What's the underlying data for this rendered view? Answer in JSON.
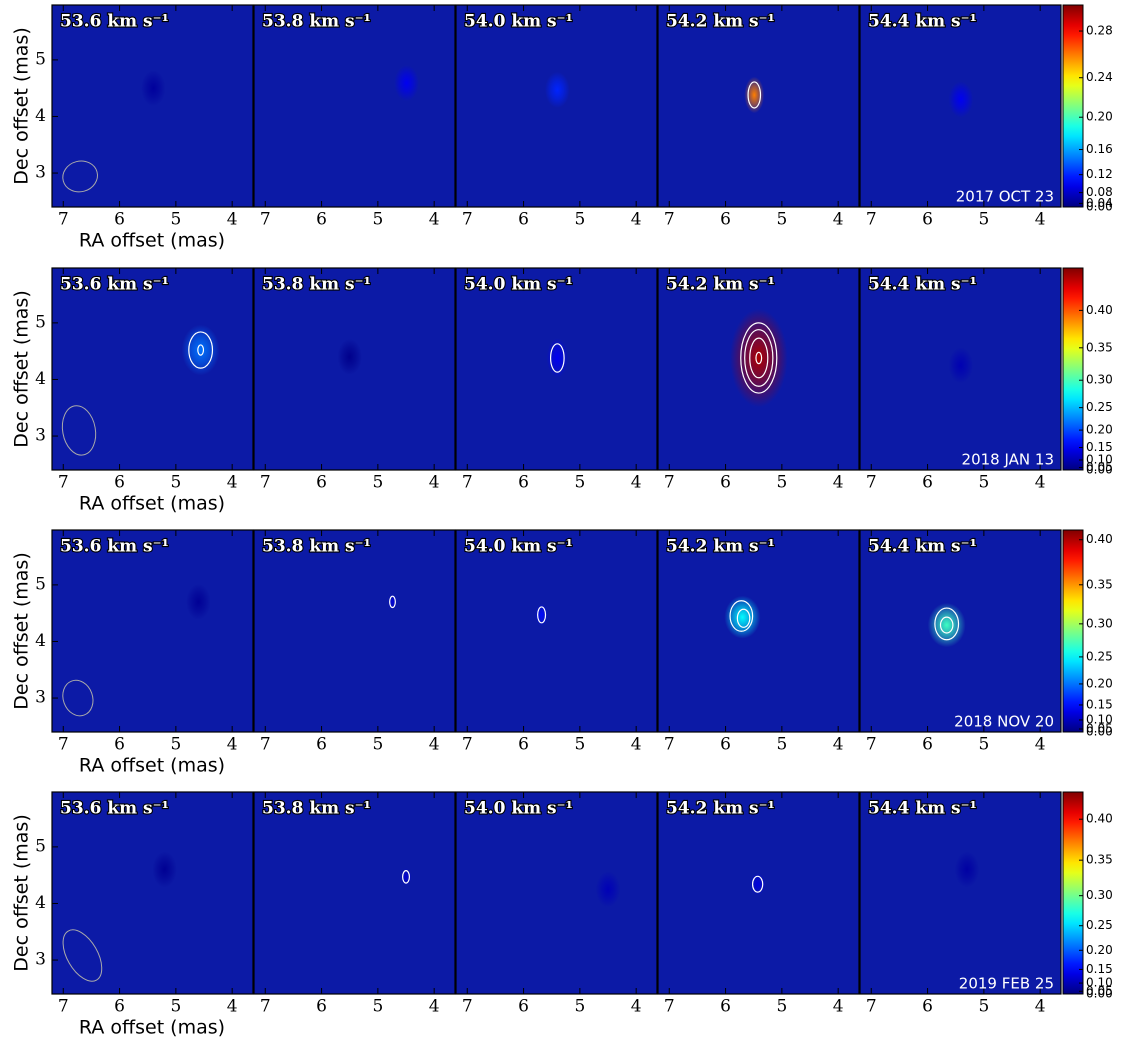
{
  "chart_data": [
    {
      "type": "channel_map",
      "date": "2017 OCT 23",
      "x_label": "RA offset (mas)",
      "y_label": "Dec offset (mas)",
      "xlim": [
        7.2,
        3.63
      ],
      "ylim": [
        2.4,
        5.97
      ],
      "xticks": [
        7,
        6,
        5,
        4
      ],
      "yticks": [
        3,
        4,
        5
      ],
      "background": "#0c1aa6",
      "contour_color": "#ffffff",
      "colorbar": {
        "colormap": "jet",
        "exponent": 2,
        "zlim": [
          0,
          0.3
        ],
        "ticks": [
          {
            "value": 0,
            "label": "0.00"
          },
          {
            "value": 0.04,
            "label": "0.04"
          },
          {
            "value": 0.08,
            "label": "0.08"
          },
          {
            "value": 0.12,
            "label": "0.12"
          },
          {
            "value": 0.16,
            "label": "0.16"
          },
          {
            "value": 0.2,
            "label": "0.20"
          },
          {
            "value": 0.24,
            "label": "0.24"
          },
          {
            "value": 0.28,
            "label": "0.28"
          }
        ]
      },
      "beam": {
        "x": 6.7,
        "y": 2.94,
        "a": 0.31,
        "b": 0.27,
        "angle": -15,
        "color": "#aaaaaa"
      },
      "panels": [
        {
          "label": "53.6 km s⁻¹",
          "peak": {
            "x": 5.4,
            "y": 4.5,
            "value": 0.05
          },
          "contours": []
        },
        {
          "label": "53.8 km s⁻¹",
          "peak": {
            "x": 4.49,
            "y": 4.59,
            "value": 0.1
          },
          "contours": []
        },
        {
          "label": "54.0 km s⁻¹",
          "peak": {
            "x": 5.4,
            "y": 4.47,
            "value": 0.12
          },
          "contours": []
        },
        {
          "label": "54.2 km s⁻¹",
          "peak": {
            "x": 5.49,
            "y": 4.38,
            "value": 0.26
          },
          "contours": [
            {
              "x": 5.49,
              "y": 4.38,
              "a": 0.11,
              "b": 0.23
            }
          ]
        },
        {
          "label": "54.4 km s⁻¹",
          "peak": {
            "x": 5.41,
            "y": 4.3,
            "value": 0.1
          },
          "contours": []
        }
      ]
    },
    {
      "type": "channel_map",
      "date": "2018 JAN 13",
      "x_label": "RA offset (mas)",
      "y_label": "Dec offset (mas)",
      "xlim": [
        7.2,
        3.63
      ],
      "ylim": [
        2.4,
        5.97
      ],
      "xticks": [
        7,
        6,
        5,
        4
      ],
      "yticks": [
        3,
        4,
        5
      ],
      "background": "#0c1aa6",
      "contour_color": "#ffffff",
      "colorbar": {
        "colormap": "jet",
        "exponent": 2,
        "zlim": [
          0,
          0.45
        ],
        "ticks": [
          {
            "value": 0,
            "label": "0.00"
          },
          {
            "value": 0.05,
            "label": "0.05"
          },
          {
            "value": 0.1,
            "label": "0.10"
          },
          {
            "value": 0.15,
            "label": "0.15"
          },
          {
            "value": 0.2,
            "label": "0.20"
          },
          {
            "value": 0.25,
            "label": "0.25"
          },
          {
            "value": 0.3,
            "label": "0.30"
          },
          {
            "value": 0.35,
            "label": "0.35"
          },
          {
            "value": 0.4,
            "label": "0.40"
          }
        ]
      },
      "beam": {
        "x": 6.72,
        "y": 3.1,
        "a": 0.29,
        "b": 0.44,
        "angle": -10,
        "color": "#aaaaaa"
      },
      "panels": [
        {
          "label": "53.6 km s⁻¹",
          "peak": {
            "x": 4.56,
            "y": 4.52,
            "value": 0.22
          },
          "contours": [
            {
              "x": 4.56,
              "y": 4.52,
              "a": 0.21,
              "b": 0.32
            },
            {
              "x": 4.56,
              "y": 4.52,
              "a": 0.05,
              "b": 0.09
            }
          ]
        },
        {
          "label": "53.8 km s⁻¹",
          "peak": {
            "x": 5.5,
            "y": 4.4,
            "value": 0.05
          },
          "contours": []
        },
        {
          "label": "54.0 km s⁻¹",
          "peak": {
            "x": 5.4,
            "y": 4.38,
            "value": 0.15
          },
          "contours": [
            {
              "x": 5.4,
              "y": 4.38,
              "a": 0.12,
              "b": 0.25
            }
          ]
        },
        {
          "label": "54.2 km s⁻¹",
          "peak": {
            "x": 5.41,
            "y": 4.38,
            "value": 0.44
          },
          "contours": [
            {
              "x": 5.41,
              "y": 4.38,
              "a": 0.32,
              "b": 0.62
            },
            {
              "x": 5.41,
              "y": 4.38,
              "a": 0.25,
              "b": 0.5
            },
            {
              "x": 5.41,
              "y": 4.38,
              "a": 0.16,
              "b": 0.35
            },
            {
              "x": 5.41,
              "y": 4.38,
              "a": 0.05,
              "b": 0.1
            }
          ]
        },
        {
          "label": "54.4 km s⁻¹",
          "peak": {
            "x": 5.41,
            "y": 4.25,
            "value": 0.1
          },
          "contours": []
        }
      ]
    },
    {
      "type": "channel_map",
      "date": "2018 NOV 20",
      "x_label": "RA offset (mas)",
      "y_label": "Dec offset (mas)",
      "xlim": [
        7.2,
        3.63
      ],
      "ylim": [
        2.4,
        5.97
      ],
      "xticks": [
        7,
        6,
        5,
        4
      ],
      "yticks": [
        3,
        4,
        5
      ],
      "background": "#0c1aa6",
      "contour_color": "#ffffff",
      "colorbar": {
        "colormap": "jet",
        "exponent": 2,
        "zlim": [
          0,
          0.41
        ],
        "ticks": [
          {
            "value": 0,
            "label": "0.00"
          },
          {
            "value": 0.05,
            "label": "0.05"
          },
          {
            "value": 0.1,
            "label": "0.10"
          },
          {
            "value": 0.15,
            "label": "0.15"
          },
          {
            "value": 0.2,
            "label": "0.20"
          },
          {
            "value": 0.25,
            "label": "0.25"
          },
          {
            "value": 0.3,
            "label": "0.30"
          },
          {
            "value": 0.35,
            "label": "0.35"
          },
          {
            "value": 0.4,
            "label": "0.40"
          }
        ]
      },
      "beam": {
        "x": 6.74,
        "y": 3.0,
        "a": 0.26,
        "b": 0.32,
        "angle": -20,
        "color": "#aaaaaa"
      },
      "panels": [
        {
          "label": "53.6 km s⁻¹",
          "peak": {
            "x": 4.6,
            "y": 4.7,
            "value": 0.06
          },
          "contours": []
        },
        {
          "label": "53.8 km s⁻¹",
          "peak": {
            "x": 4.74,
            "y": 4.7,
            "value": 0.12
          },
          "contours": [
            {
              "x": 4.74,
              "y": 4.7,
              "a": 0.05,
              "b": 0.1
            }
          ]
        },
        {
          "label": "54.0 km s⁻¹",
          "peak": {
            "x": 5.68,
            "y": 4.47,
            "value": 0.15
          },
          "contours": [
            {
              "x": 5.68,
              "y": 4.47,
              "a": 0.07,
              "b": 0.14
            }
          ]
        },
        {
          "label": "54.2 km s⁻¹",
          "peak": {
            "x": 5.7,
            "y": 4.43,
            "value": 0.25
          },
          "contours": [
            {
              "x": 5.72,
              "y": 4.45,
              "a": 0.2,
              "b": 0.27
            },
            {
              "x": 5.68,
              "y": 4.41,
              "a": 0.11,
              "b": 0.16
            }
          ]
        },
        {
          "label": "54.4 km s⁻¹",
          "peak": {
            "x": 5.66,
            "y": 4.29,
            "value": 0.27
          },
          "contours": [
            {
              "x": 5.66,
              "y": 4.31,
              "a": 0.21,
              "b": 0.28
            },
            {
              "x": 5.66,
              "y": 4.29,
              "a": 0.11,
              "b": 0.14
            }
          ]
        }
      ]
    },
    {
      "type": "channel_map",
      "date": "2019 FEB 25",
      "x_label": "RA offset (mas)",
      "y_label": "Dec offset (mas)",
      "xlim": [
        7.2,
        3.63
      ],
      "ylim": [
        2.4,
        5.97
      ],
      "xticks": [
        7,
        6,
        5,
        4
      ],
      "yticks": [
        3,
        4,
        5
      ],
      "background": "#0c1aa6",
      "contour_color": "#ffffff",
      "colorbar": {
        "colormap": "jet",
        "exponent": 2,
        "zlim": [
          0,
          0.43
        ],
        "ticks": [
          {
            "value": 0,
            "label": "0.00"
          },
          {
            "value": 0.05,
            "label": "0.05"
          },
          {
            "value": 0.1,
            "label": "0.10"
          },
          {
            "value": 0.15,
            "label": "0.15"
          },
          {
            "value": 0.2,
            "label": "0.20"
          },
          {
            "value": 0.25,
            "label": "0.25"
          },
          {
            "value": 0.3,
            "label": "0.30"
          },
          {
            "value": 0.35,
            "label": "0.35"
          },
          {
            "value": 0.4,
            "label": "0.40"
          }
        ]
      },
      "beam": {
        "x": 6.66,
        "y": 3.08,
        "a": 0.27,
        "b": 0.5,
        "angle": -30,
        "color": "#aaaaaa"
      },
      "panels": [
        {
          "label": "53.6 km s⁻¹",
          "peak": {
            "x": 5.2,
            "y": 4.6,
            "value": 0.06
          },
          "contours": []
        },
        {
          "label": "53.8 km s⁻¹",
          "peak": {
            "x": 4.5,
            "y": 4.47,
            "value": 0.12
          },
          "contours": [
            {
              "x": 4.5,
              "y": 4.47,
              "a": 0.06,
              "b": 0.11
            }
          ]
        },
        {
          "label": "54.0 km s⁻¹",
          "peak": {
            "x": 4.5,
            "y": 4.25,
            "value": 0.1
          },
          "contours": []
        },
        {
          "label": "54.2 km s⁻¹",
          "peak": {
            "x": 5.43,
            "y": 4.34,
            "value": 0.13
          },
          "contours": [
            {
              "x": 5.43,
              "y": 4.34,
              "a": 0.09,
              "b": 0.14
            }
          ]
        },
        {
          "label": "54.4 km s⁻¹",
          "peak": {
            "x": 5.3,
            "y": 4.6,
            "value": 0.08
          },
          "contours": []
        }
      ]
    }
  ]
}
